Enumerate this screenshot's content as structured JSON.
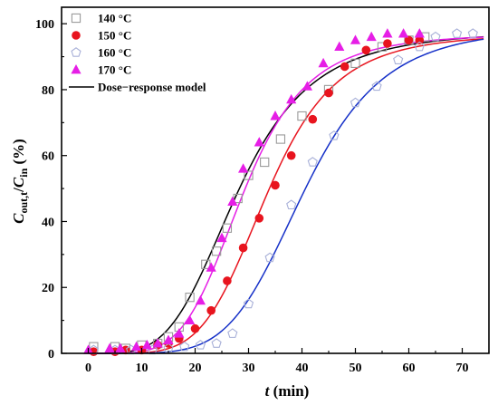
{
  "chart_data": {
    "type": "scatter",
    "title": "",
    "xlabel": {
      "italic": "t",
      "rest": " (min)"
    },
    "ylabel": {
      "c1": "C",
      "s1": "out,t",
      "slash": "/",
      "c2": "C",
      "s2": "in",
      "rest": " (%)"
    },
    "xlim": [
      -5,
      75
    ],
    "ylim": [
      0,
      105
    ],
    "xticks": [
      0,
      10,
      20,
      30,
      40,
      50,
      60,
      70
    ],
    "xminor": [
      -5,
      5,
      15,
      25,
      35,
      45,
      55,
      65,
      75
    ],
    "yticks": [
      0,
      20,
      40,
      60,
      80,
      100
    ],
    "yminor": [
      10,
      30,
      50,
      70,
      90
    ],
    "grid": false,
    "legend_position": "top-left",
    "series": [
      {
        "name": "140 °C",
        "marker": "square-open",
        "color": "#9a9a9a",
        "x": [
          1,
          5,
          7,
          10,
          13,
          15,
          17,
          19,
          22,
          24,
          26,
          28,
          30,
          33,
          36,
          40,
          45,
          50,
          55,
          60,
          63
        ],
        "y": [
          2,
          2,
          1.5,
          2.5,
          3,
          5,
          8,
          17,
          27,
          31,
          38,
          47,
          54,
          58,
          65,
          72,
          80,
          88,
          93,
          95,
          96
        ]
      },
      {
        "name": "150 °C",
        "marker": "circle-filled",
        "color": "#e8141e",
        "fit_color": "#e8141e",
        "x": [
          1,
          5,
          7,
          10,
          13,
          15,
          17,
          20,
          23,
          26,
          29,
          32,
          35,
          38,
          42,
          45,
          48,
          52,
          56,
          60,
          62
        ],
        "y": [
          0.5,
          0.5,
          1,
          1,
          2.5,
          3,
          4.5,
          7.5,
          13,
          22,
          32,
          41,
          51,
          60,
          71,
          79,
          87,
          92,
          94,
          95,
          95
        ]
      },
      {
        "name": "160 °C",
        "marker": "pentagon-open",
        "color": "#a8b0d8",
        "fit_color": "#1530c8",
        "x": [
          1,
          5,
          8,
          12,
          15,
          18,
          21,
          24,
          27,
          30,
          34,
          38,
          42,
          46,
          50,
          54,
          58,
          62,
          65,
          69,
          72
        ],
        "y": [
          1,
          1,
          1,
          1,
          1.5,
          2,
          2.5,
          3,
          6,
          15,
          29,
          45,
          58,
          66,
          76,
          81,
          89,
          93,
          96,
          97,
          97
        ]
      },
      {
        "name": "170 °C",
        "marker": "triangle-filled",
        "color": "#e61ee6",
        "fit_color": "#e61ee6",
        "x": [
          0,
          4,
          6,
          9,
          11,
          13,
          15,
          17,
          19,
          21,
          23,
          25,
          27,
          29,
          32,
          35,
          38,
          41,
          44,
          47,
          50,
          53,
          56,
          59,
          62
        ],
        "y": [
          1,
          1.5,
          1.5,
          2,
          2.5,
          3,
          4,
          6,
          10,
          16,
          26,
          35,
          46,
          56,
          64,
          72,
          77,
          81,
          88,
          93,
          95,
          96,
          97,
          97,
          97
        ]
      },
      {
        "name": "Dose−response model",
        "marker": "line",
        "color": "#000000",
        "fit_color": "#000000"
      }
    ],
    "fits": [
      {
        "series": "140 °C",
        "color": "#000000",
        "A1": 0,
        "A2": 98,
        "x0": 28.0,
        "p": 4.0
      },
      {
        "series": "150 °C",
        "color": "#e8141e",
        "A1": 0,
        "A2": 97,
        "x0": 33.5,
        "p": 5.2
      },
      {
        "series": "160 °C",
        "color": "#1530c8",
        "A1": 0,
        "A2": 99,
        "x0": 40.5,
        "p": 5.4
      },
      {
        "series": "170 °C",
        "color": "#e61ee6",
        "A1": 0,
        "A2": 97,
        "x0": 29.0,
        "p": 4.8
      }
    ]
  }
}
